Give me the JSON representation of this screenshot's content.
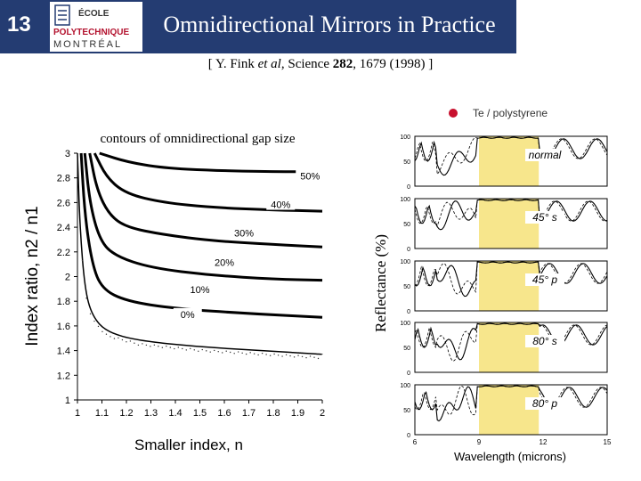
{
  "slide": {
    "number": "13",
    "title": "Omnidirectional Mirrors in Practice",
    "logo_lines": [
      "ÉCOLE",
      "POLYTECHNIQUE",
      "MONTRÉAL"
    ],
    "citation": {
      "prefix": "[ Y. Fink ",
      "italic": "et al",
      "mid": ", Science ",
      "bold": "282",
      "suffix": ", 1679 (1998) ]"
    }
  },
  "contour_plot": {
    "title": "contours of omnidirectional gap size",
    "y_label": "Index ratio,  n2 / n1",
    "x_label": "Smaller index,  n",
    "x_ticks": [
      "1",
      "1.1",
      "1.2",
      "1.3",
      "1.4",
      "1.5",
      "1.6",
      "1.7",
      "1.8",
      "1.9",
      "2"
    ],
    "y_ticks": [
      "1",
      "1.2",
      "1.4",
      "1.6",
      "1.8",
      "2",
      "2.2",
      "2.4",
      "2.6",
      "2.8",
      "3"
    ],
    "contour_labels": [
      "50%",
      "40%",
      "30%",
      "20%",
      "10%",
      "0%"
    ]
  },
  "chart_data": {
    "type": "line",
    "xlabel": "Smaller index,  n",
    "ylabel": "Index ratio,  n2 / n1",
    "xlim": [
      1,
      2
    ],
    "ylim": [
      1,
      3
    ],
    "series": [
      {
        "name": "50%",
        "points": [
          [
            1.09,
            3.0
          ],
          [
            1.2,
            2.93
          ],
          [
            1.35,
            2.88
          ],
          [
            1.55,
            2.86
          ],
          [
            1.8,
            2.85
          ],
          [
            2.0,
            2.85
          ]
        ]
      },
      {
        "name": "40%",
        "points": [
          [
            1.07,
            3.0
          ],
          [
            1.12,
            2.8
          ],
          [
            1.2,
            2.67
          ],
          [
            1.35,
            2.6
          ],
          [
            1.55,
            2.56
          ],
          [
            1.8,
            2.54
          ],
          [
            2.0,
            2.53
          ]
        ]
      },
      {
        "name": "30%",
        "points": [
          [
            1.05,
            3.0
          ],
          [
            1.08,
            2.7
          ],
          [
            1.13,
            2.5
          ],
          [
            1.2,
            2.4
          ],
          [
            1.35,
            2.34
          ],
          [
            1.55,
            2.29
          ],
          [
            1.8,
            2.26
          ],
          [
            2.0,
            2.24
          ]
        ]
      },
      {
        "name": "20%",
        "points": [
          [
            1.03,
            3.0
          ],
          [
            1.05,
            2.6
          ],
          [
            1.09,
            2.3
          ],
          [
            1.15,
            2.17
          ],
          [
            1.3,
            2.07
          ],
          [
            1.55,
            2.01
          ],
          [
            1.8,
            1.98
          ],
          [
            2.0,
            1.97
          ]
        ]
      },
      {
        "name": "10%",
        "points": [
          [
            1.015,
            3.0
          ],
          [
            1.03,
            2.5
          ],
          [
            1.06,
            2.1
          ],
          [
            1.1,
            1.9
          ],
          [
            1.2,
            1.8
          ],
          [
            1.4,
            1.74
          ],
          [
            1.7,
            1.7
          ],
          [
            2.0,
            1.67
          ]
        ]
      },
      {
        "name": "0%",
        "points": [
          [
            1.0,
            3.0
          ],
          [
            1.01,
            2.4
          ],
          [
            1.03,
            1.9
          ],
          [
            1.06,
            1.68
          ],
          [
            1.12,
            1.55
          ],
          [
            1.25,
            1.48
          ],
          [
            1.5,
            1.43
          ],
          [
            1.75,
            1.4
          ],
          [
            2.0,
            1.37
          ]
        ]
      }
    ]
  },
  "reflectance": {
    "y_label": "Reflectance (%)",
    "x_label": "Wavelength  (microns)",
    "x_ticks": [
      "6",
      "9",
      "12",
      "15"
    ],
    "y_ticks": [
      "0",
      "50",
      "100"
    ],
    "legend": "Te / polystyrene",
    "legend_color": "#c8102e",
    "band_color": "#f7e68c",
    "panels": [
      {
        "label": "normal"
      },
      {
        "label": "45°  s"
      },
      {
        "label": "45°  p"
      },
      {
        "label": "80°  s"
      },
      {
        "label": "80°  p"
      }
    ]
  }
}
